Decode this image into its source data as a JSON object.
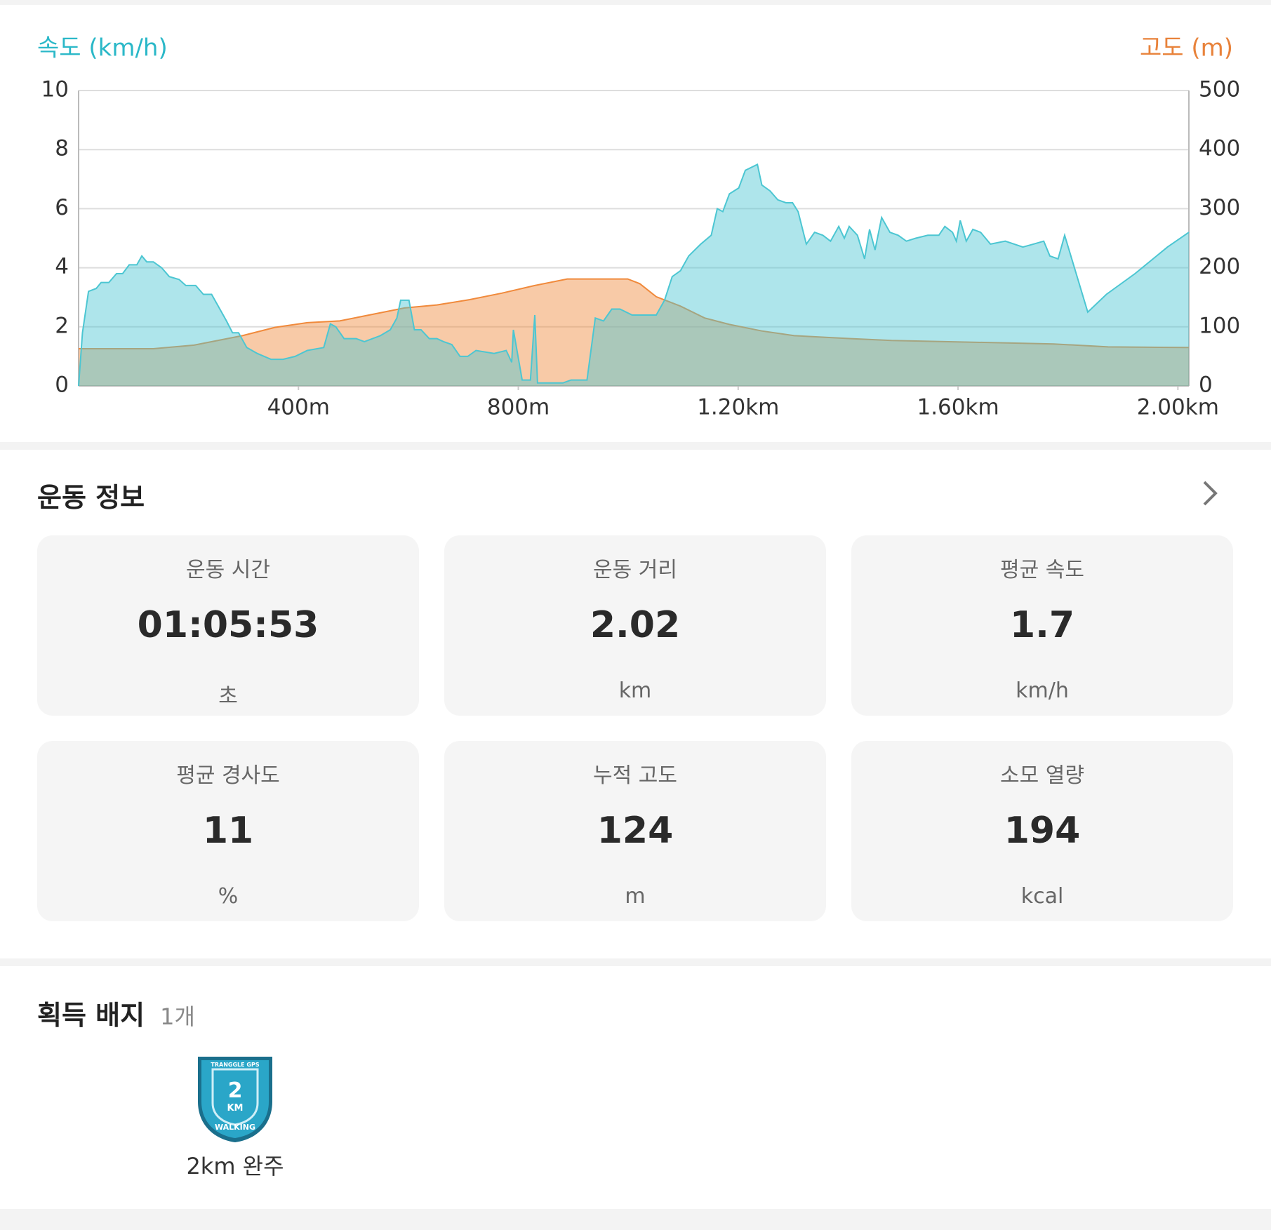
{
  "chart_data": {
    "type": "area",
    "ylabel": "속도 (km/h)",
    "y2label": "고도 (m)",
    "xlim": [
      0,
      2.02
    ],
    "xticks": [
      {
        "value": 0.4,
        "label": "400m"
      },
      {
        "value": 0.8,
        "label": "800m"
      },
      {
        "value": 1.2,
        "label": "1.20km"
      },
      {
        "value": 1.6,
        "label": "1.60km"
      },
      {
        "value": 2.0,
        "label": "2.00km"
      }
    ],
    "ylim": [
      0,
      10
    ],
    "yticks": [
      0,
      2,
      4,
      6,
      8,
      10
    ],
    "y2lim": [
      0,
      500
    ],
    "y2ticks": [
      0,
      100,
      200,
      300,
      400,
      500
    ],
    "grid": true,
    "series": [
      {
        "color": "#f08a3c",
        "axis": "y2",
        "x": [
          0,
          0.136,
          0.21,
          0.298,
          0.357,
          0.416,
          0.475,
          0.534,
          0.593,
          0.652,
          0.711,
          0.77,
          0.83,
          0.889,
          0.948,
          0.999,
          1.021,
          1.051,
          1.095,
          1.139,
          1.184,
          1.243,
          1.302,
          1.405,
          1.479,
          1.627,
          1.774,
          1.873,
          2.02
        ],
        "values": [
          63,
          63,
          69,
          85,
          99,
          107,
          110,
          121,
          132,
          137,
          146,
          157,
          170,
          181,
          181,
          181,
          173,
          151,
          135,
          115,
          104,
          93,
          85,
          80,
          77,
          74,
          71,
          66,
          65
        ]
      },
      {
        "color": "#4cc6d2",
        "x": [
          0,
          0.007,
          0.018,
          0.032,
          0.041,
          0.055,
          0.069,
          0.08,
          0.092,
          0.106,
          0.115,
          0.124,
          0.136,
          0.151,
          0.165,
          0.183,
          0.195,
          0.213,
          0.227,
          0.242,
          0.254,
          0.269,
          0.28,
          0.291,
          0.306,
          0.325,
          0.35,
          0.372,
          0.394,
          0.416,
          0.446,
          0.458,
          0.468,
          0.483,
          0.505,
          0.52,
          0.549,
          0.567,
          0.579,
          0.586,
          0.601,
          0.611,
          0.623,
          0.638,
          0.652,
          0.664,
          0.679,
          0.694,
          0.708,
          0.723,
          0.756,
          0.778,
          0.788,
          0.791,
          0.807,
          0.822,
          0.83,
          0.835,
          0.881,
          0.896,
          0.925,
          0.94,
          0.955,
          0.97,
          0.985,
          1.007,
          1.036,
          1.051,
          1.066,
          1.08,
          1.095,
          1.11,
          1.132,
          1.151,
          1.162,
          1.172,
          1.184,
          1.201,
          1.213,
          1.235,
          1.243,
          1.258,
          1.272,
          1.287,
          1.299,
          1.309,
          1.324,
          1.339,
          1.354,
          1.368,
          1.383,
          1.393,
          1.402,
          1.417,
          1.43,
          1.439,
          1.449,
          1.461,
          1.476,
          1.491,
          1.506,
          1.523,
          1.545,
          1.565,
          1.576,
          1.59,
          1.597,
          1.604,
          1.615,
          1.627,
          1.641,
          1.659,
          1.686,
          1.718,
          1.737,
          1.756,
          1.767,
          1.782,
          1.794,
          1.836,
          1.87,
          1.922,
          1.981,
          2.02
        ],
        "values": [
          0,
          1.8,
          3.2,
          3.3,
          3.5,
          3.5,
          3.8,
          3.8,
          4.1,
          4.1,
          4.4,
          4.2,
          4.2,
          4.0,
          3.7,
          3.6,
          3.4,
          3.4,
          3.1,
          3.1,
          2.7,
          2.2,
          1.8,
          1.8,
          1.3,
          1.1,
          0.9,
          0.9,
          1.0,
          1.2,
          1.3,
          2.1,
          2.0,
          1.6,
          1.6,
          1.5,
          1.7,
          1.9,
          2.3,
          2.9,
          2.9,
          1.9,
          1.9,
          1.6,
          1.6,
          1.5,
          1.4,
          1.0,
          1.0,
          1.2,
          1.1,
          1.2,
          0.8,
          1.9,
          0.2,
          0.2,
          2.4,
          0.1,
          0.1,
          0.2,
          0.2,
          2.3,
          2.2,
          2.6,
          2.6,
          2.4,
          2.4,
          2.4,
          2.9,
          3.7,
          3.9,
          4.4,
          4.8,
          5.1,
          6.0,
          5.9,
          6.5,
          6.7,
          7.3,
          7.5,
          6.8,
          6.6,
          6.3,
          6.2,
          6.2,
          5.9,
          4.8,
          5.2,
          5.1,
          4.9,
          5.4,
          5.0,
          5.4,
          5.1,
          4.3,
          5.3,
          4.6,
          5.7,
          5.2,
          5.1,
          4.9,
          5.0,
          5.1,
          5.1,
          5.4,
          5.2,
          4.9,
          5.6,
          4.9,
          5.3,
          5.2,
          4.8,
          4.9,
          4.7,
          4.8,
          4.9,
          4.4,
          4.3,
          5.1,
          2.5,
          3.1,
          3.8,
          4.7,
          5.2
        ]
      }
    ]
  },
  "info": {
    "title": "운동 정보",
    "stats": [
      {
        "label": "운동 시간",
        "value": "01:05:53",
        "unit": "초"
      },
      {
        "label": "운동 거리",
        "value": "2.02",
        "unit": "km"
      },
      {
        "label": "평균 속도",
        "value": "1.7",
        "unit": "km/h"
      },
      {
        "label": "평균 경사도",
        "value": "11",
        "unit": "%"
      },
      {
        "label": "누적 고도",
        "value": "124",
        "unit": "m"
      },
      {
        "label": "소모 열량",
        "value": "194",
        "unit": "kcal"
      }
    ]
  },
  "badges": {
    "title": "획득 배지",
    "count": "1개",
    "items": [
      {
        "label": "2km 완주",
        "badge_top": "TRANGGLE GPS",
        "badge_num": "2",
        "badge_unit": "KM",
        "badge_bottom": "WALKING"
      }
    ]
  }
}
